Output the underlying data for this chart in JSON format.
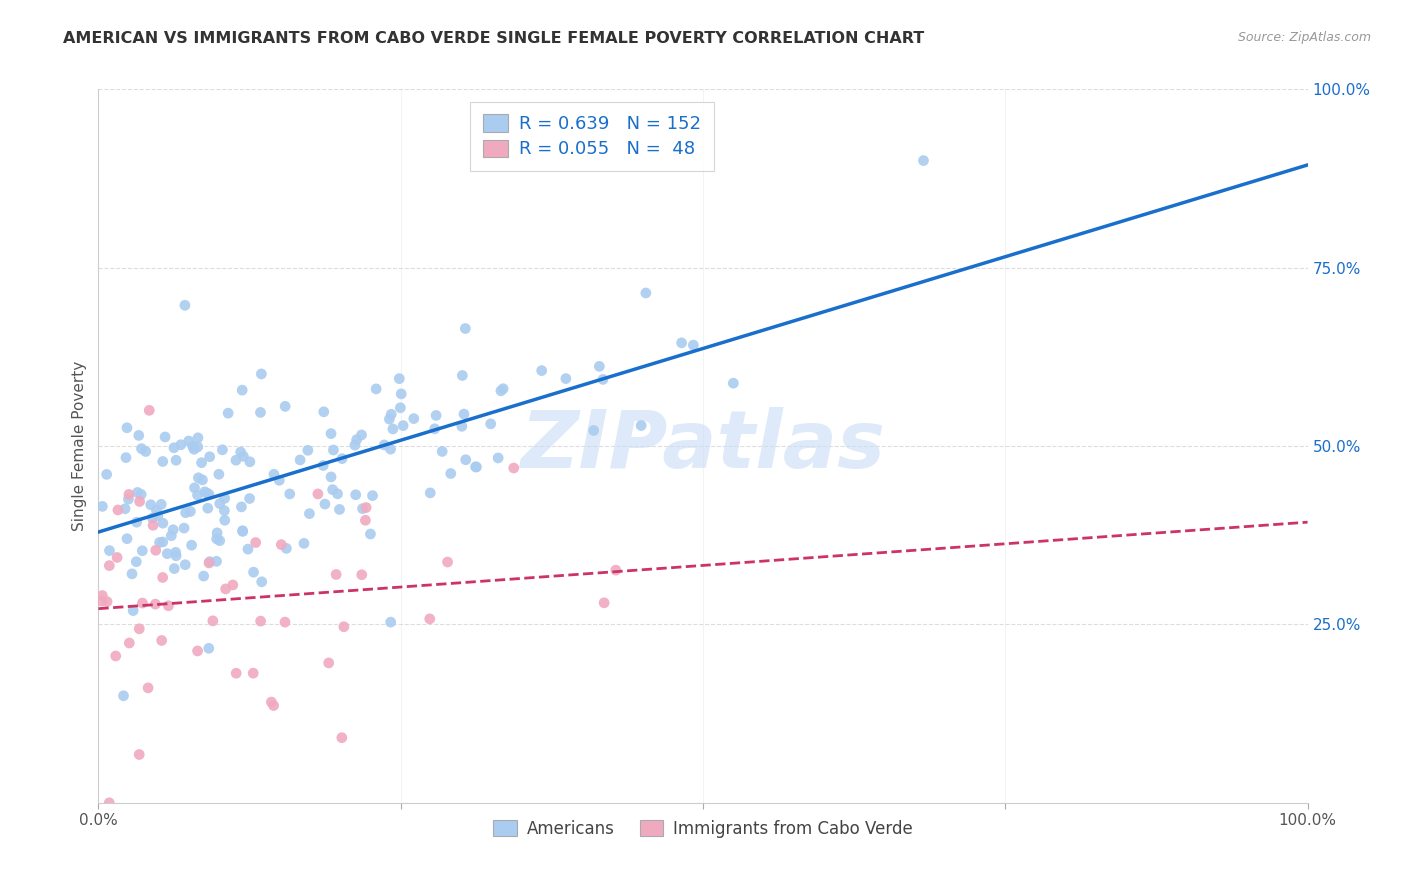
{
  "title": "AMERICAN VS IMMIGRANTS FROM CABO VERDE SINGLE FEMALE POVERTY CORRELATION CHART",
  "source": "Source: ZipAtlas.com",
  "ylabel": "Single Female Poverty",
  "americans_color": "#aaccf0",
  "americans_edge_color": "#88aadd",
  "cabo_verde_color": "#f0aac0",
  "cabo_verde_edge_color": "#dd88aa",
  "americans_line_color": "#1a6fcc",
  "cabo_verde_line_color": "#cc3366",
  "watermark_color": "#c8ddf5",
  "background_color": "#ffffff",
  "grid_color": "#dddddd",
  "right_tick_color": "#1a6fcc",
  "title_color": "#333333",
  "source_color": "#999999",
  "legend_r1": "R = 0.639",
  "legend_n1": "N = 152",
  "legend_r2": "R = 0.055",
  "legend_n2": "N =  48",
  "watermark": "ZIPatlas",
  "americans_seed": 12345,
  "cabo_verde_seed": 67890,
  "n_americans": 152,
  "n_cabo_verde": 48,
  "r_americans": 0.639,
  "r_cabo_verde": 0.055
}
